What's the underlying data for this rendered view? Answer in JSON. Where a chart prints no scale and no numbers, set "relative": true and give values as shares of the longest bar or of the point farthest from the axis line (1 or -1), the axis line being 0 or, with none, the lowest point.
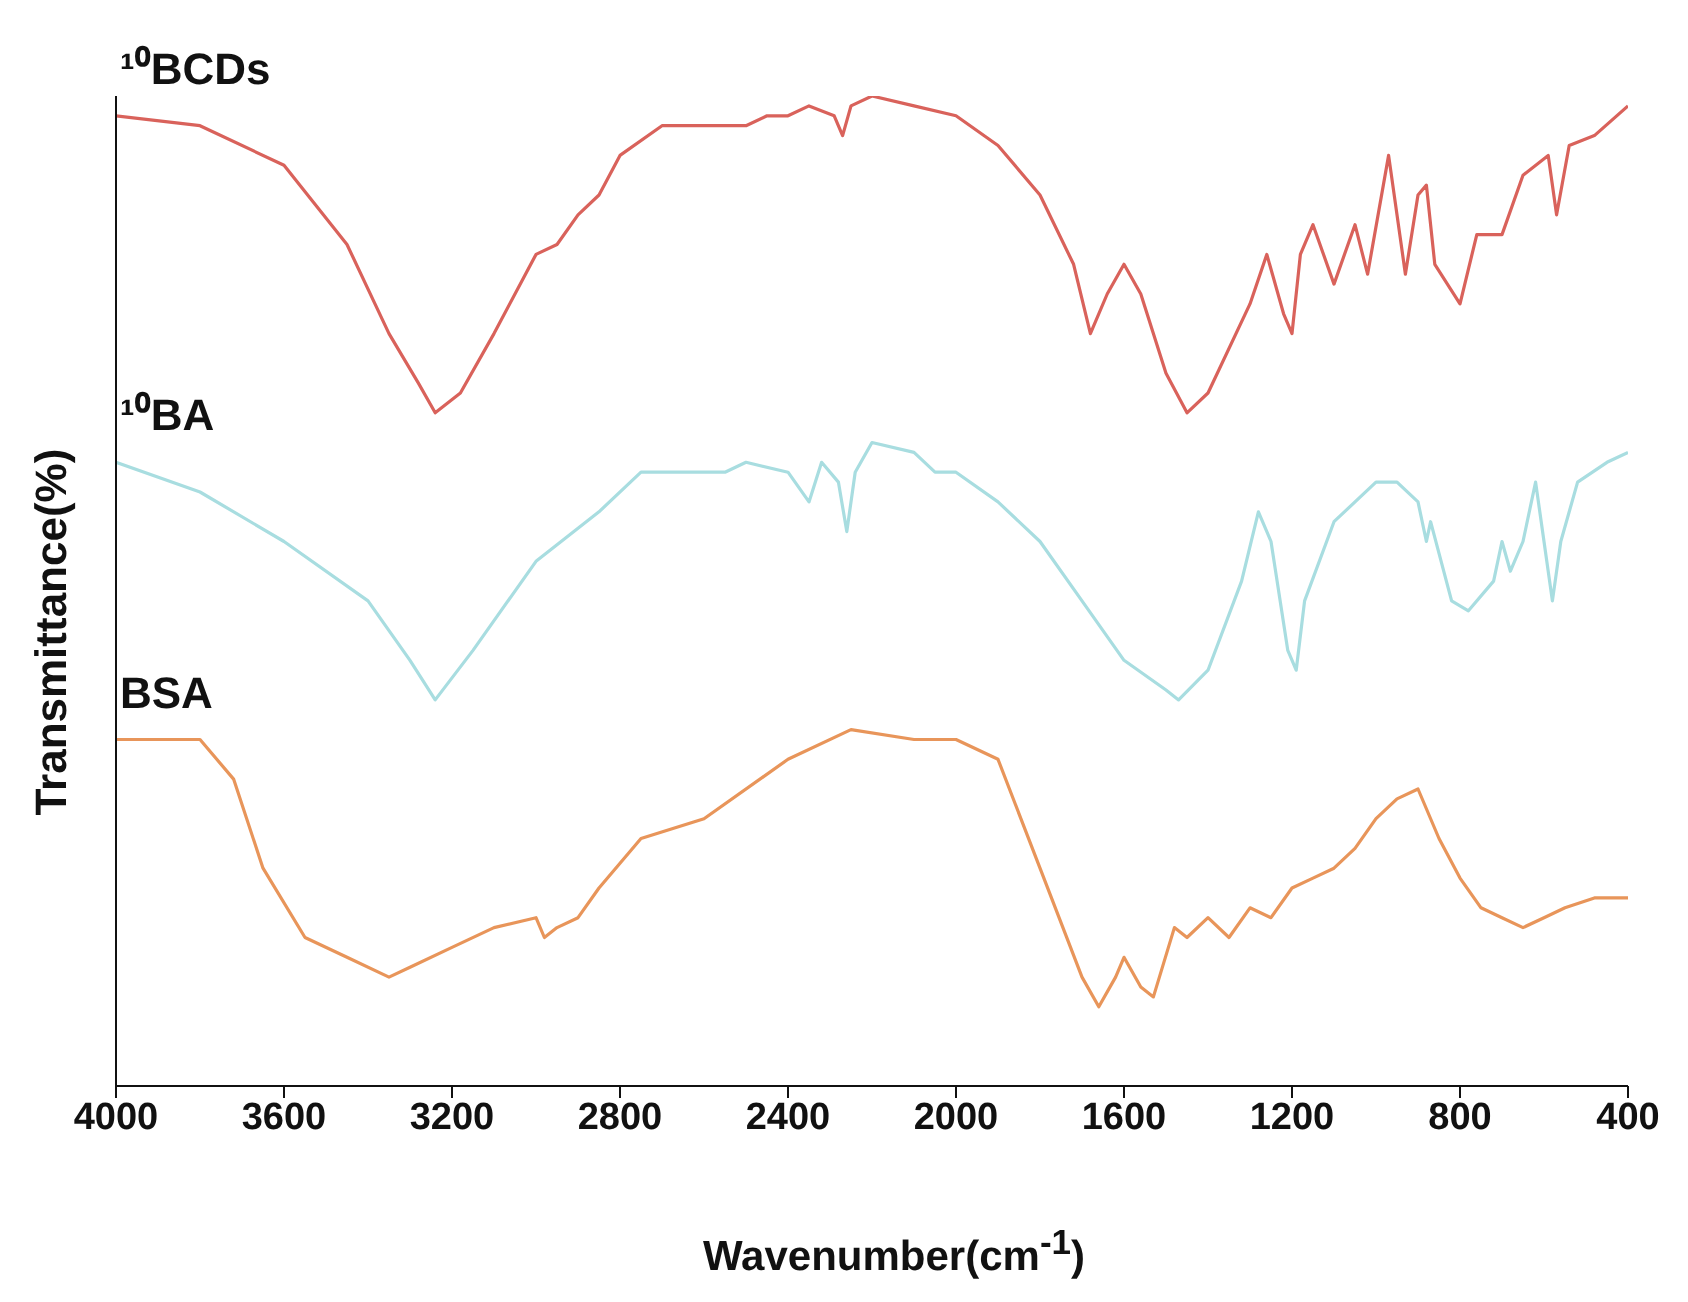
{
  "chart_data": {
    "type": "line",
    "relative": true,
    "xlabel": "Wavenumber(cm$^{-1}$)",
    "ylabel": "Transmittance(%)",
    "xlim": [
      4000,
      400
    ],
    "xticks": [
      4000,
      3600,
      3200,
      2800,
      2400,
      2000,
      1600,
      1200,
      800,
      400
    ],
    "series": [
      {
        "name": "¹⁰BCDs",
        "color": "#d9625b",
        "x": [
          4000,
          3800,
          3600,
          3450,
          3350,
          3280,
          3240,
          3180,
          3100,
          3000,
          2950,
          2900,
          2850,
          2800,
          2700,
          2500,
          2450,
          2400,
          2350,
          2290,
          2270,
          2250,
          2200,
          2100,
          2000,
          1900,
          1800,
          1720,
          1680,
          1640,
          1600,
          1560,
          1500,
          1450,
          1400,
          1300,
          1260,
          1220,
          1200,
          1180,
          1150,
          1100,
          1050,
          1020,
          970,
          930,
          900,
          880,
          860,
          800,
          760,
          700,
          650,
          590,
          570,
          540,
          480,
          400
        ],
        "values": [
          0.98,
          0.97,
          0.93,
          0.85,
          0.76,
          0.71,
          0.68,
          0.7,
          0.76,
          0.84,
          0.85,
          0.88,
          0.9,
          0.94,
          0.97,
          0.97,
          0.98,
          0.98,
          0.99,
          0.98,
          0.96,
          0.99,
          1.0,
          0.99,
          0.98,
          0.95,
          0.9,
          0.83,
          0.76,
          0.8,
          0.83,
          0.8,
          0.72,
          0.68,
          0.7,
          0.79,
          0.84,
          0.78,
          0.76,
          0.84,
          0.87,
          0.81,
          0.87,
          0.82,
          0.94,
          0.82,
          0.9,
          0.91,
          0.83,
          0.79,
          0.86,
          0.86,
          0.92,
          0.94,
          0.88,
          0.95,
          0.96,
          0.99
        ]
      },
      {
        "name": "¹⁰BA",
        "color": "#a8dde0",
        "x": [
          4000,
          3800,
          3600,
          3400,
          3300,
          3240,
          3150,
          3000,
          2850,
          2750,
          2600,
          2550,
          2500,
          2400,
          2350,
          2320,
          2280,
          2260,
          2240,
          2200,
          2100,
          2050,
          2000,
          1900,
          1800,
          1700,
          1600,
          1500,
          1470,
          1400,
          1320,
          1280,
          1250,
          1210,
          1190,
          1170,
          1100,
          1000,
          950,
          900,
          880,
          870,
          820,
          780,
          720,
          700,
          680,
          650,
          620,
          600,
          580,
          560,
          520,
          450,
          400
        ],
        "values": [
          0.63,
          0.6,
          0.55,
          0.49,
          0.43,
          0.39,
          0.44,
          0.53,
          0.58,
          0.62,
          0.62,
          0.62,
          0.63,
          0.62,
          0.59,
          0.63,
          0.61,
          0.56,
          0.62,
          0.65,
          0.64,
          0.62,
          0.62,
          0.59,
          0.55,
          0.49,
          0.43,
          0.4,
          0.39,
          0.42,
          0.51,
          0.58,
          0.55,
          0.44,
          0.42,
          0.49,
          0.57,
          0.61,
          0.61,
          0.59,
          0.55,
          0.57,
          0.49,
          0.48,
          0.51,
          0.55,
          0.52,
          0.55,
          0.61,
          0.55,
          0.49,
          0.55,
          0.61,
          0.63,
          0.64
        ]
      },
      {
        "name": "BSA",
        "color": "#e8955a",
        "x": [
          4000,
          3800,
          3720,
          3650,
          3550,
          3450,
          3350,
          3300,
          3200,
          3100,
          3000,
          2980,
          2950,
          2900,
          2850,
          2750,
          2600,
          2400,
          2250,
          2100,
          2000,
          1900,
          1800,
          1700,
          1660,
          1620,
          1600,
          1560,
          1530,
          1480,
          1450,
          1400,
          1350,
          1300,
          1250,
          1200,
          1150,
          1100,
          1050,
          1000,
          950,
          900,
          850,
          800,
          750,
          700,
          650,
          600,
          550,
          480,
          400
        ],
        "values": [
          0.35,
          0.35,
          0.31,
          0.22,
          0.15,
          0.13,
          0.11,
          0.12,
          0.14,
          0.16,
          0.17,
          0.15,
          0.16,
          0.17,
          0.2,
          0.25,
          0.27,
          0.33,
          0.36,
          0.35,
          0.35,
          0.33,
          0.22,
          0.11,
          0.08,
          0.11,
          0.13,
          0.1,
          0.09,
          0.16,
          0.15,
          0.17,
          0.15,
          0.18,
          0.17,
          0.2,
          0.21,
          0.22,
          0.24,
          0.27,
          0.29,
          0.3,
          0.25,
          0.21,
          0.18,
          0.17,
          0.16,
          0.17,
          0.18,
          0.19,
          0.19
        ]
      }
    ]
  }
}
